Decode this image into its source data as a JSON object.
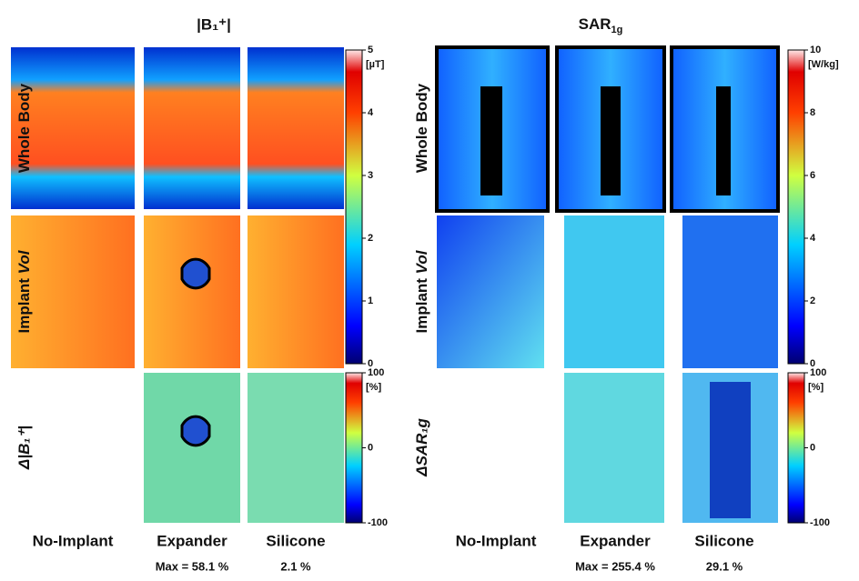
{
  "left": {
    "title": "|B₁⁺|",
    "row_labels": [
      [
        "Whole Body"
      ],
      [
        "Implant ",
        "Vol"
      ],
      [
        "Δ|B₁⁺|"
      ]
    ],
    "columns": [
      "No-Implant",
      "Expander",
      "Silicone"
    ],
    "notes": [
      "Max = 58.1 %",
      "2.1 %"
    ],
    "colorbars": [
      {
        "unit": "[µT]",
        "ticks": [
          5,
          4,
          3,
          2,
          1,
          0
        ]
      },
      {
        "unit": "[%]",
        "ticks": [
          100,
          0,
          -100
        ]
      }
    ]
  },
  "right": {
    "title": [
      "SAR",
      "1g"
    ],
    "row_labels": [
      [
        "Whole Body"
      ],
      [
        "Implant ",
        "Vol"
      ],
      [
        "ΔSAR₁g"
      ]
    ],
    "columns": [
      "No-Implant",
      "Expander",
      "Silicone"
    ],
    "notes": [
      "Max = 255.4 %",
      "29.1 %"
    ],
    "colorbars": [
      {
        "unit": "[W/kg]",
        "ticks": [
          10,
          8,
          6,
          4,
          2,
          0
        ]
      },
      {
        "unit": "[%]",
        "ticks": [
          100,
          0,
          -100
        ]
      }
    ]
  }
}
